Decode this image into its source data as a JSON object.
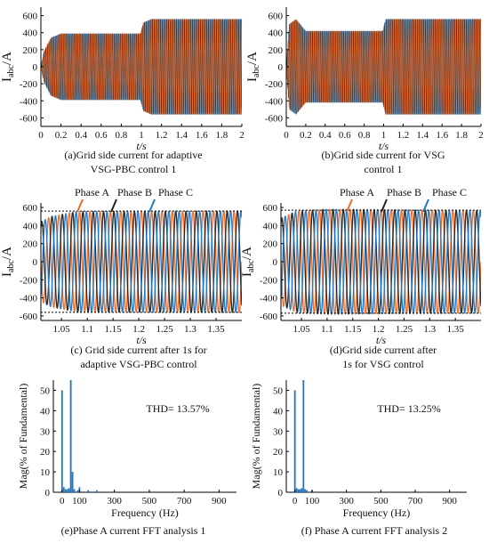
{
  "figure": {
    "captions": [
      [
        "(a)Grid side current for adaptive",
        "VSG-PBC control 1"
      ],
      [
        "(b)Grid side current for  VSG",
        "control 1"
      ],
      [
        "(c) Grid side current after 1s for",
        "adaptive VSG-PBC control"
      ],
      [
        "(d)Grid side current after",
        "1s for VSG control"
      ],
      [
        "(e)Phase A current FFT analysis 1"
      ],
      [
        "(f) Phase A current FFT analysis 2"
      ]
    ]
  },
  "chart_data": [
    {
      "id": "a",
      "type": "line",
      "xlabel": "t/s",
      "ylabel_main": "I",
      "ylabel_sub": "abc",
      "ylabel_unit": "/A",
      "xlim": [
        0,
        2
      ],
      "ylim": [
        -700,
        700
      ],
      "xticks": [
        0,
        0.2,
        0.4,
        0.6,
        0.8,
        1,
        1.2,
        1.4,
        1.6,
        1.8,
        2
      ],
      "xtick_labels": [
        "0",
        "0.2",
        "0.4",
        "0.6",
        "0.8",
        "1",
        "1.2",
        "1.4",
        "1.6",
        "1.8",
        "2"
      ],
      "yticks": [
        600,
        400,
        200,
        0,
        -200,
        -400,
        -600
      ],
      "ytick_labels": [
        "600",
        "400",
        "200",
        "0",
        "-200",
        "-400",
        "-600"
      ],
      "series": [
        {
          "color": "#1f77c4",
          "phase_deg": 0
        },
        {
          "color": "#222222",
          "phase_deg": -120
        },
        {
          "color": "#ee6a2a",
          "phase_deg": 120
        }
      ],
      "envelope": {
        "t": [
          0,
          0.03,
          0.1,
          0.2,
          0.99,
          1.02,
          1.1,
          2
        ],
        "amp": [
          0,
          180,
          340,
          390,
          390,
          520,
          560,
          560
        ]
      },
      "frequency_hz": 50
    },
    {
      "id": "b",
      "type": "line",
      "xlabel": "t/s",
      "ylabel_main": "I",
      "ylabel_sub": "abc",
      "ylabel_unit": "/A",
      "xlim": [
        0,
        2
      ],
      "ylim": [
        -700,
        700
      ],
      "xticks": [
        0,
        0.2,
        0.4,
        0.6,
        0.8,
        1,
        1.2,
        1.4,
        1.6,
        1.8,
        2
      ],
      "xtick_labels": [
        "0",
        "0.2",
        "0.4",
        "0.6",
        "0.8",
        "1",
        "1.2",
        "1.4",
        "1.6",
        "1.8",
        "2"
      ],
      "yticks": [
        600,
        400,
        200,
        0,
        -200,
        -400,
        -600
      ],
      "ytick_labels": [
        "600",
        "400",
        "200",
        "0",
        "-200",
        "-400",
        "-600"
      ],
      "series": [
        {
          "color": "#1f77c4",
          "phase_deg": 0
        },
        {
          "color": "#222222",
          "phase_deg": -120
        },
        {
          "color": "#ee6a2a",
          "phase_deg": 120
        }
      ],
      "envelope": {
        "t": [
          0,
          0.03,
          0.1,
          0.2,
          0.99,
          1.02,
          1.1,
          2
        ],
        "amp": [
          0,
          500,
          560,
          420,
          420,
          560,
          560,
          560
        ]
      },
      "frequency_hz": 50
    },
    {
      "id": "c",
      "type": "line",
      "xlabel": "t/s",
      "ylabel_main": "I",
      "ylabel_sub": "abc",
      "ylabel_unit": "/A",
      "xlim": [
        1.01,
        1.4
      ],
      "ylim": [
        -650,
        650
      ],
      "xticks": [
        1.05,
        1.1,
        1.15,
        1.2,
        1.25,
        1.3,
        1.35
      ],
      "xtick_labels": [
        "1.05",
        "1.1",
        "1.15",
        "1.2",
        "1.25",
        "1.3",
        "1.35"
      ],
      "yticks": [
        600,
        400,
        200,
        0,
        -200,
        -400,
        -600
      ],
      "ytick_labels": [
        "600",
        "400",
        "200",
        "0",
        "-200",
        "-400",
        "-600"
      ],
      "ref_lines": [
        560,
        -560
      ],
      "legend": [
        "Phase A",
        "Phase B",
        "Phase C"
      ],
      "series": [
        {
          "name": "Phase A",
          "color": "#ee6a2a",
          "phase_deg": 0
        },
        {
          "name": "Phase B",
          "color": "#222222",
          "phase_deg": -120
        },
        {
          "name": "Phase C",
          "color": "#1f77c4",
          "phase_deg": 120
        }
      ],
      "envelope": {
        "t": [
          1.01,
          1.03,
          1.08,
          1.4
        ],
        "amp": [
          440,
          500,
          555,
          560
        ]
      },
      "frequency_hz": 50
    },
    {
      "id": "d",
      "type": "line",
      "xlabel": "t/s",
      "ylabel_main": "I",
      "ylabel_sub": "abc",
      "ylabel_unit": "/A",
      "xlim": [
        1.01,
        1.4
      ],
      "ylim": [
        -650,
        650
      ],
      "xticks": [
        1.05,
        1.1,
        1.15,
        1.2,
        1.25,
        1.3,
        1.35
      ],
      "xtick_labels": [
        "1.05",
        "1.1",
        "1.15",
        "1.2",
        "1.25",
        "1.3",
        "1.35"
      ],
      "yticks": [
        600,
        400,
        200,
        0,
        -200,
        -400,
        -600
      ],
      "ytick_labels": [
        "600",
        "400",
        "200",
        "0",
        "-200",
        "-400",
        "-600"
      ],
      "ref_lines": [
        570,
        -570
      ],
      "legend": [
        "Phase A",
        "Phase B",
        "Phase C"
      ],
      "series": [
        {
          "name": "Phase A",
          "color": "#ee6a2a",
          "phase_deg": 0
        },
        {
          "name": "Phase B",
          "color": "#222222",
          "phase_deg": -120
        },
        {
          "name": "Phase C",
          "color": "#1f77c4",
          "phase_deg": 120
        }
      ],
      "envelope": {
        "t": [
          1.01,
          1.04,
          1.1,
          1.4
        ],
        "amp": [
          480,
          560,
          580,
          565
        ]
      },
      "frequency_hz": 50
    },
    {
      "id": "e",
      "type": "bar",
      "xlabel": "Frequency (Hz)",
      "ylabel": "Mag(% of Fundamental)",
      "xlim": [
        -50,
        1000
      ],
      "ylim": [
        0,
        55
      ],
      "xticks": [
        0,
        100,
        300,
        500,
        700,
        900
      ],
      "xtick_labels": [
        "0",
        "100",
        "300",
        "500",
        "700",
        "900"
      ],
      "yticks": [
        0,
        10,
        20,
        30,
        40,
        50
      ],
      "ytick_labels": [
        "0",
        "10",
        "20",
        "30",
        "40",
        "50"
      ],
      "annotation": "THD= 13.57%",
      "color": "#1f77c4",
      "x": [
        0,
        10,
        20,
        30,
        40,
        50,
        60,
        70,
        90,
        100,
        150,
        200
      ],
      "values": [
        50,
        2.5,
        1.5,
        1.5,
        2,
        55,
        10,
        1.5,
        1,
        2.5,
        1,
        1
      ]
    },
    {
      "id": "f",
      "type": "bar",
      "xlabel": "Frequency (Hz)",
      "ylabel": "Mag(% of Fundamental)",
      "xlim": [
        -50,
        1000
      ],
      "ylim": [
        0,
        55
      ],
      "xticks": [
        0,
        100,
        300,
        500,
        700,
        900
      ],
      "xtick_labels": [
        "0",
        "100",
        "300",
        "500",
        "700",
        "900"
      ],
      "yticks": [
        0,
        10,
        20,
        30,
        40,
        50
      ],
      "ytick_labels": [
        "0",
        "10",
        "20",
        "30",
        "40",
        "50"
      ],
      "annotation": "THD= 13.25%",
      "color": "#1f77c4",
      "x": [
        0,
        10,
        20,
        30,
        40,
        50,
        60,
        70,
        100
      ],
      "values": [
        50,
        2,
        1.5,
        1.5,
        2,
        55,
        1.5,
        1,
        1
      ]
    }
  ]
}
